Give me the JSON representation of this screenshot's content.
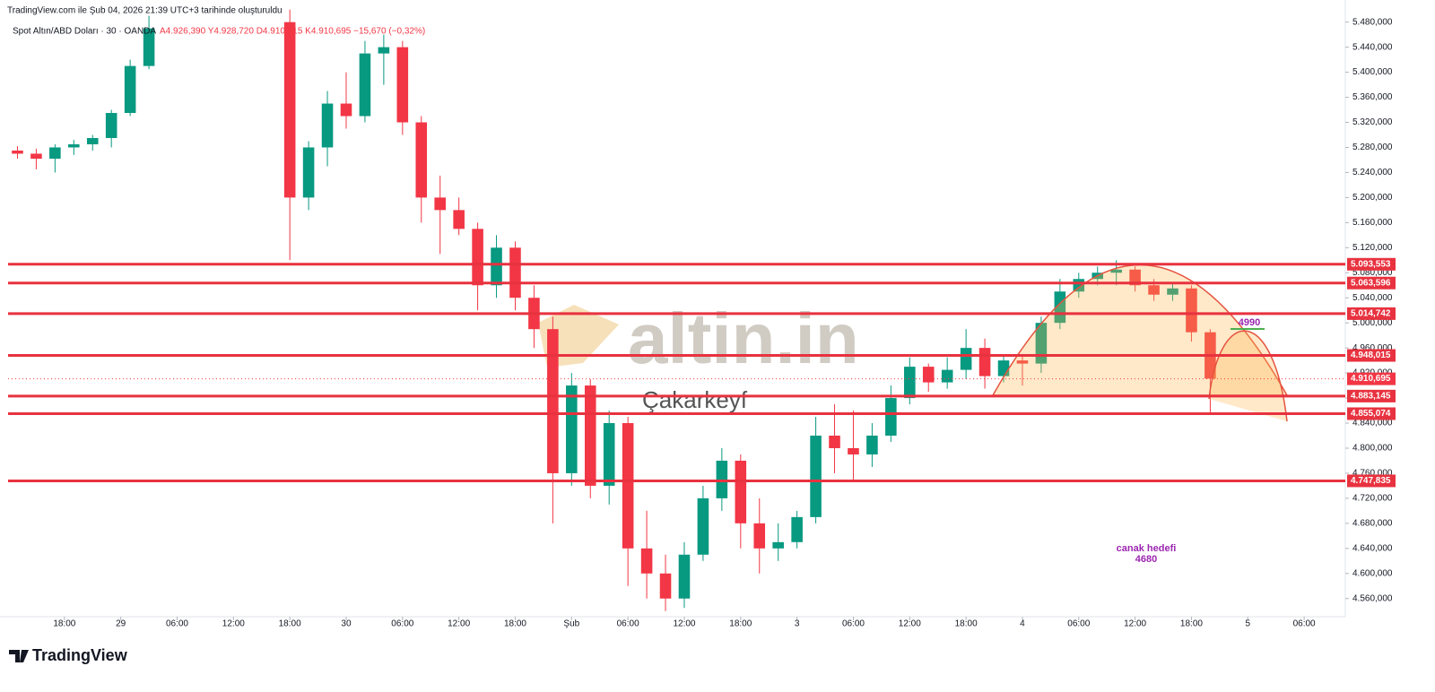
{
  "chart_data": {
    "type": "candlestick",
    "title": "TradingView.com ile Şub 04, 2026 21:39 UTC+3 tarihinde oluşturuldu",
    "subtitle": "Spot Altın/ABD Doları · 30 · OANDA",
    "quote": "A4.926,390 Y4.928,720 D4.910,615 K4.910,695 −15,670 (−0,32%)",
    "watermark": "altin.in",
    "author": "Çakarkeyf",
    "brand": "TradingView",
    "target_label": "canak hedefi",
    "target_value": 4680,
    "arc_label": 4990,
    "up_color": "#089981",
    "down_color": "#f23645",
    "level_color": "#e8323f",
    "x": [
      1,
      3,
      5,
      7,
      9,
      11,
      13,
      15,
      30,
      32,
      34,
      36,
      38,
      40,
      42,
      44,
      46,
      48,
      50,
      52,
      54,
      56,
      58,
      60,
      62,
      64,
      66,
      68,
      70,
      72,
      74,
      76,
      78,
      80,
      82,
      84,
      86,
      88,
      90,
      92,
      94,
      96,
      98,
      100,
      102,
      104,
      106,
      108,
      110,
      112,
      114,
      116,
      118,
      120,
      122,
      124,
      126,
      128
    ],
    "open": [
      5275,
      5270,
      5262,
      5280,
      5285,
      5295,
      5335,
      5410,
      5480,
      5200,
      5280,
      5350,
      5330,
      5430,
      5440,
      5320,
      5200,
      5180,
      5150,
      5060,
      5120,
      5040,
      4990,
      4760,
      4900,
      4740,
      4840,
      4640,
      4600,
      4560,
      4630,
      4720,
      4780,
      4680,
      4640,
      4650,
      4690,
      4820,
      4800,
      4790,
      4820,
      4880,
      4930,
      4905,
      4925,
      4960,
      4915,
      4940,
      4935,
      5000,
      5050,
      5070,
      5080,
      5085,
      5060,
      5045,
      5055,
      4985
    ],
    "high": [
      5282,
      5278,
      5285,
      5292,
      5300,
      5340,
      5420,
      5490,
      5500,
      5290,
      5370,
      5400,
      5450,
      5460,
      5450,
      5330,
      5235,
      5200,
      5160,
      5140,
      5130,
      5060,
      5010,
      4920,
      4910,
      4860,
      4850,
      4700,
      4630,
      4650,
      4740,
      4800,
      4790,
      4720,
      4680,
      4700,
      4850,
      4870,
      4860,
      4840,
      4900,
      4945,
      4935,
      4945,
      4990,
      4975,
      4950,
      4950,
      5010,
      5070,
      5080,
      5090,
      5100,
      5090,
      5070,
      5065,
      5060,
      4990
    ],
    "low": [
      5262,
      5245,
      5240,
      5268,
      5275,
      5280,
      5330,
      5405,
      5100,
      5180,
      5250,
      5310,
      5320,
      5380,
      5300,
      5160,
      5110,
      5140,
      5020,
      5040,
      5020,
      4960,
      4680,
      4740,
      4720,
      4710,
      4580,
      4560,
      4540,
      4545,
      4620,
      4700,
      4640,
      4600,
      4620,
      4640,
      4680,
      4760,
      4750,
      4770,
      4810,
      4870,
      4890,
      4895,
      4910,
      4895,
      4905,
      4900,
      4920,
      4990,
      5040,
      5060,
      5060,
      5050,
      5035,
      5035,
      4970,
      4855
    ],
    "close": [
      5270,
      5262,
      5280,
      5285,
      5295,
      5335,
      5410,
      5470,
      5200,
      5280,
      5350,
      5330,
      5430,
      5440,
      5320,
      5200,
      5180,
      5150,
      5060,
      5120,
      5040,
      4990,
      4760,
      4900,
      4740,
      4840,
      4640,
      4600,
      4560,
      4630,
      4720,
      4780,
      4680,
      4640,
      4650,
      4690,
      4820,
      4800,
      4790,
      4820,
      4880,
      4930,
      4905,
      4925,
      4960,
      4915,
      4940,
      4935,
      5000,
      5050,
      5070,
      5080,
      5085,
      5060,
      5045,
      5055,
      4985,
      4911
    ],
    "levels": [
      {
        "value": 5093.553,
        "label": "5.093,553"
      },
      {
        "value": 5063.596,
        "label": "5.063,596"
      },
      {
        "value": 5014.742,
        "label": "5.014,742"
      },
      {
        "value": 4948.015,
        "label": "4.948,015"
      },
      {
        "value": 4883.145,
        "label": "4.883,145"
      },
      {
        "value": 4855.074,
        "label": "4.855,074"
      },
      {
        "value": 4747.835,
        "label": "4.747,835"
      }
    ],
    "last_price": {
      "value": 4910.695,
      "label": "4.910,695"
    },
    "xlim": [
      0,
      142
    ],
    "xticks": [
      {
        "value": 6,
        "label": "18:00"
      },
      {
        "value": 12,
        "label": "29"
      },
      {
        "value": 18,
        "label": "06:00"
      },
      {
        "value": 24,
        "label": "12:00"
      },
      {
        "value": 30,
        "label": "18:00"
      },
      {
        "value": 36,
        "label": "30"
      },
      {
        "value": 42,
        "label": "06:00"
      },
      {
        "value": 48,
        "label": "12:00"
      },
      {
        "value": 54,
        "label": "18:00"
      },
      {
        "value": 60,
        "label": "Şub"
      },
      {
        "value": 66,
        "label": "06:00"
      },
      {
        "value": 72,
        "label": "12:00"
      },
      {
        "value": 78,
        "label": "18:00"
      },
      {
        "value": 84,
        "label": "3"
      },
      {
        "value": 90,
        "label": "06:00"
      },
      {
        "value": 96,
        "label": "12:00"
      },
      {
        "value": 102,
        "label": "18:00"
      },
      {
        "value": 108,
        "label": "4"
      },
      {
        "value": 114,
        "label": "06:00"
      },
      {
        "value": 120,
        "label": "12:00"
      },
      {
        "value": 126,
        "label": "18:00"
      },
      {
        "value": 132,
        "label": "5"
      },
      {
        "value": 138,
        "label": "06:00"
      }
    ],
    "ylim": [
      4531,
      5501
    ],
    "yticks": [
      {
        "value": 5480,
        "label": "5.480,000"
      },
      {
        "value": 5440,
        "label": "5.440,000"
      },
      {
        "value": 5400,
        "label": "5.400,000"
      },
      {
        "value": 5360,
        "label": "5.360,000"
      },
      {
        "value": 5320,
        "label": "5.320,000"
      },
      {
        "value": 5280,
        "label": "5.280,000"
      },
      {
        "value": 5240,
        "label": "5.240,000"
      },
      {
        "value": 5200,
        "label": "5.200,000"
      },
      {
        "value": 5160,
        "label": "5.160,000"
      },
      {
        "value": 5120,
        "label": "5.120,000"
      },
      {
        "value": 5080,
        "label": "5.080,000"
      },
      {
        "value": 5040,
        "label": "5.040,000"
      },
      {
        "value": 5000,
        "label": "5.000,000"
      },
      {
        "value": 4960,
        "label": "4.960,000"
      },
      {
        "value": 4920,
        "label": "4.920,000"
      },
      {
        "value": 4880,
        "label": "4.880,000"
      },
      {
        "value": 4840,
        "label": "4.840,000"
      },
      {
        "value": 4800,
        "label": "4.800,000"
      },
      {
        "value": 4760,
        "label": "4.760,000"
      },
      {
        "value": 4720,
        "label": "4.720,000"
      },
      {
        "value": 4680,
        "label": "4.680,000"
      },
      {
        "value": 4640,
        "label": "4.640,000"
      },
      {
        "value": 4600,
        "label": "4.600,000"
      },
      {
        "value": 4560,
        "label": "4.560,000"
      }
    ]
  }
}
